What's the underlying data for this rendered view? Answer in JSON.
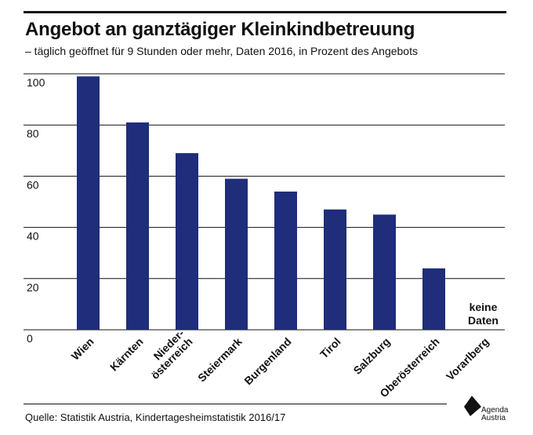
{
  "header": {
    "title": "Angebot an ganztägiger Kleinkindbetreuung",
    "subtitle": "– täglich geöffnet für 9 Stunden oder mehr, Daten 2016, in Prozent des Angebots"
  },
  "footer": {
    "source": "Quelle: Statistik Austria, Kindertagesheimstatistik 2016/17",
    "logo_line1": "Agenda",
    "logo_line2": "Austria"
  },
  "chart_data": {
    "type": "bar",
    "categories": [
      "Wien",
      "Kärnten",
      "Nieder-\nösterreich",
      "Steiermark",
      "Burgenland",
      "Tirol",
      "Salzburg",
      "Oberösterreich",
      "Vorarlberg"
    ],
    "values": [
      99,
      81,
      69,
      59,
      54,
      47,
      45,
      24,
      null
    ],
    "no_data_note": [
      "keine",
      "Daten"
    ],
    "y_ticks": [
      0,
      20,
      40,
      60,
      80,
      100
    ],
    "ylim": [
      0,
      100
    ],
    "bar_color": "#1f2d7b",
    "gridlines": true,
    "legend": "none"
  }
}
